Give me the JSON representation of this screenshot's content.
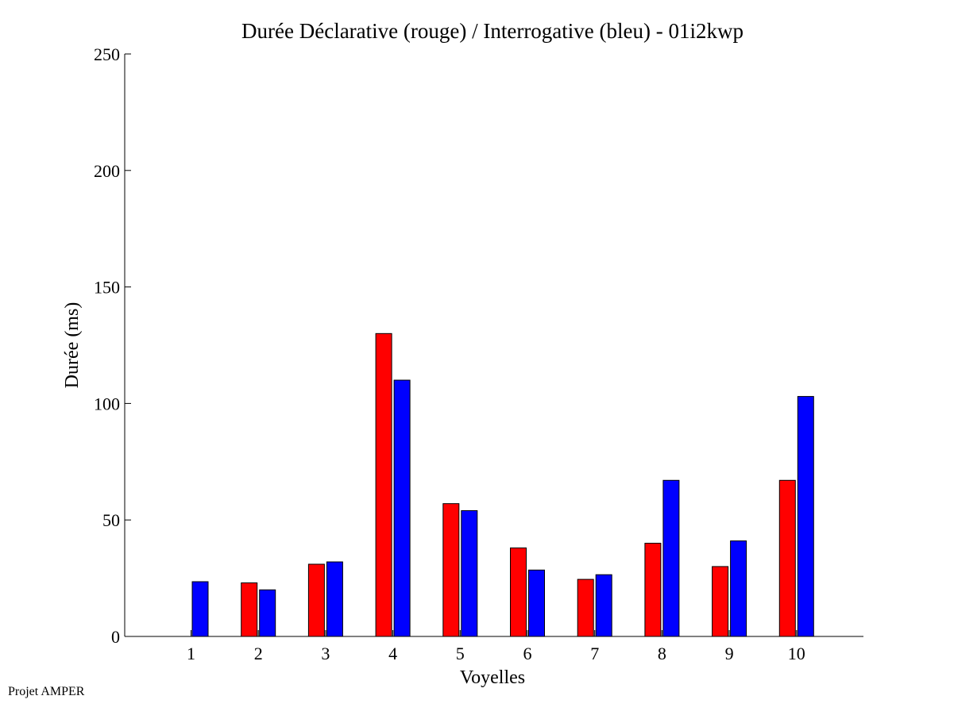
{
  "chart_data": {
    "type": "bar",
    "title": "Durée Déclarative (rouge) / Interrogative (bleu) - 01i2kwp",
    "xlabel": "Voyelles",
    "ylabel": "Durée (ms)",
    "ylim": [
      0,
      250
    ],
    "yticks": [
      0,
      50,
      100,
      150,
      200,
      250
    ],
    "categories": [
      "1",
      "2",
      "3",
      "4",
      "5",
      "6",
      "7",
      "8",
      "9",
      "10"
    ],
    "series": [
      {
        "color": "#ff0000",
        "values": [
          0,
          23,
          31,
          130,
          57,
          38,
          24.5,
          40,
          30,
          67
        ]
      },
      {
        "color": "#0000ff",
        "values": [
          23.5,
          20,
          32,
          110,
          54,
          28.5,
          26.5,
          67,
          41,
          103
        ]
      }
    ],
    "grid": false,
    "legend": "none"
  },
  "footer": {
    "text": "Projet AMPER"
  }
}
